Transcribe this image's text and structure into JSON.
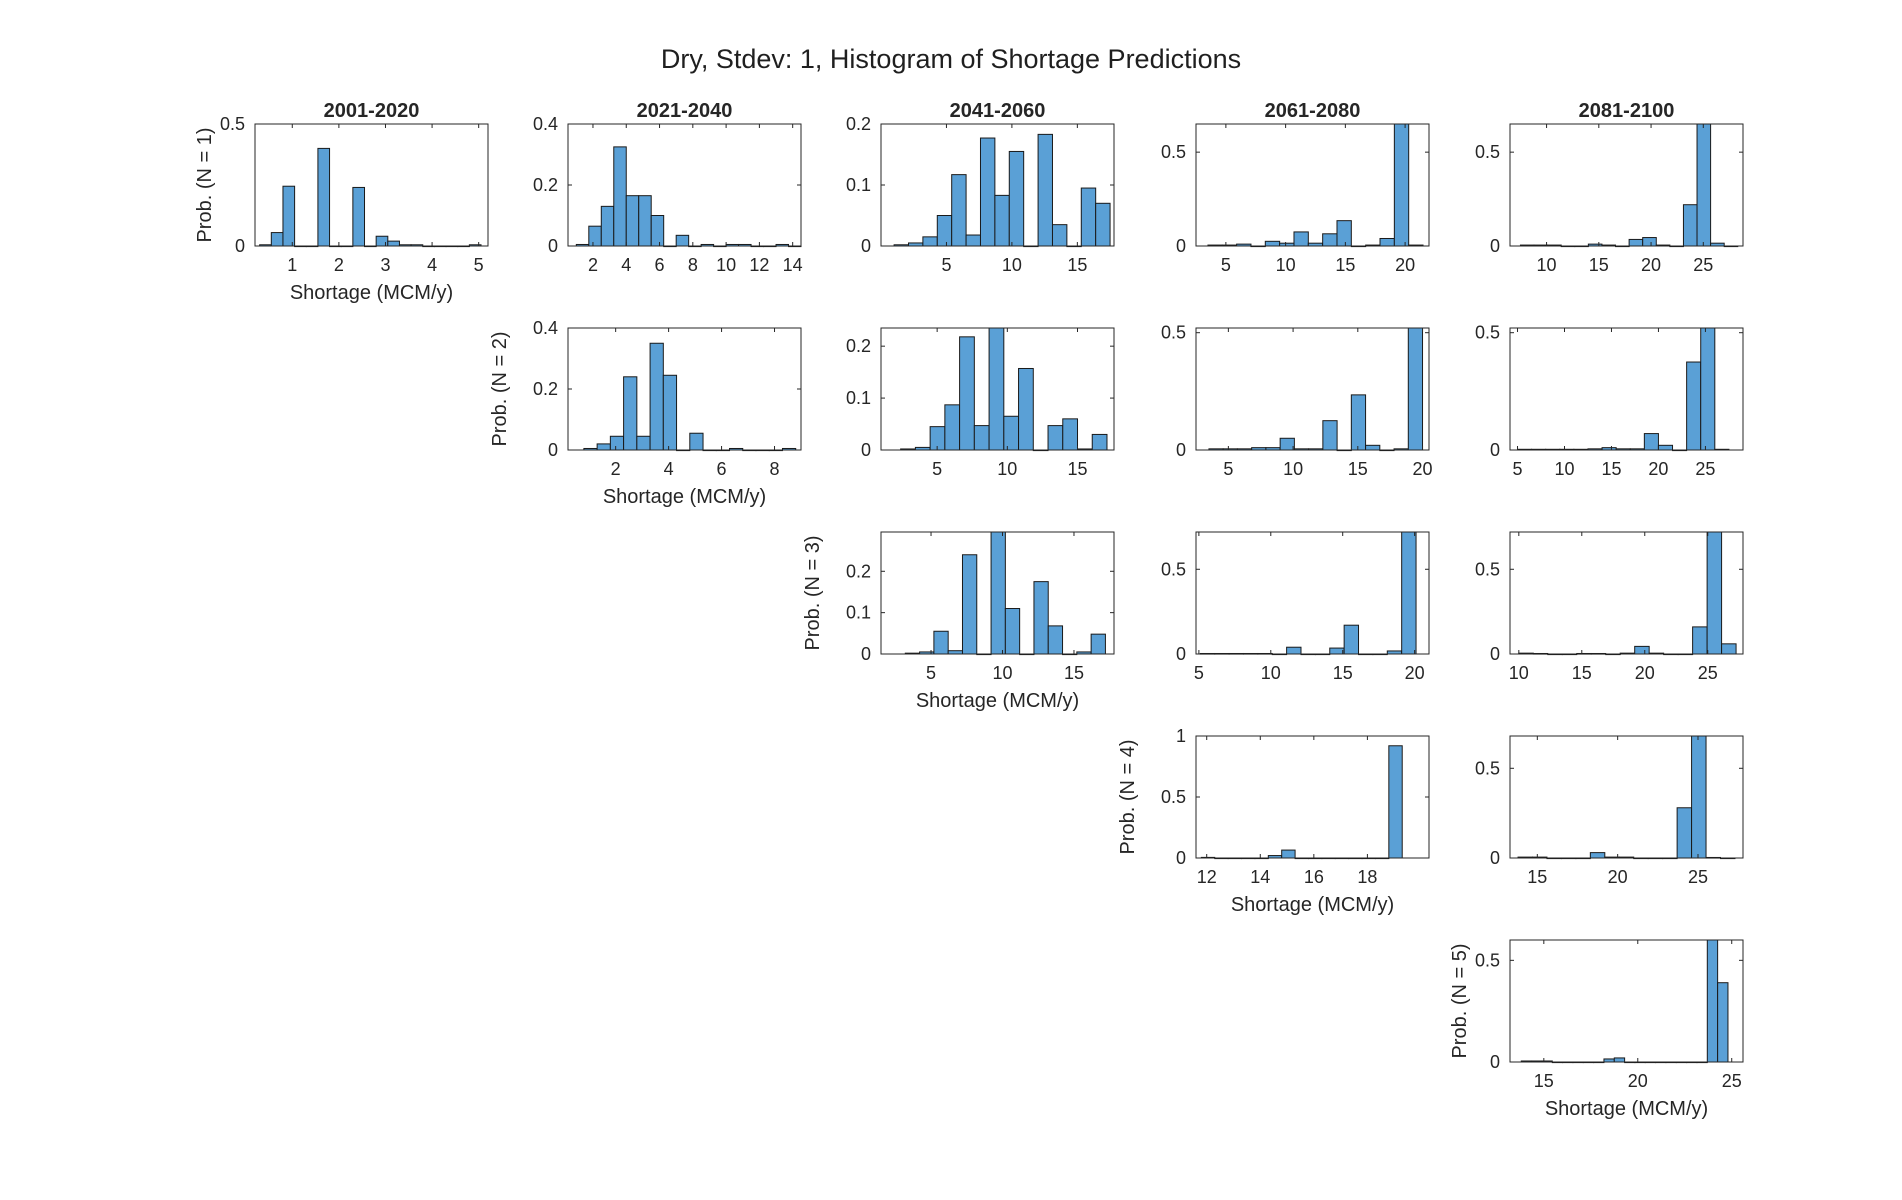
{
  "figure": {
    "title": "Dry, Stdev: 1, Histogram of Shortage Predictions",
    "bar_color": "#5aa0d6",
    "edge_color": "#1a1a1a",
    "axis_color": "#262626"
  },
  "chart_data": [
    {
      "type": "bar",
      "period": "2001-2020",
      "N": 1,
      "title": "2001-2020",
      "ylabel": "Prob. (N = 1)",
      "xlabel": "Shortage (MCM/y)",
      "xlim": [
        0.2,
        5.2
      ],
      "ylim": [
        0,
        0.5
      ],
      "xticks": [
        1,
        2,
        3,
        4,
        5
      ],
      "yticks": [
        0,
        0.5
      ],
      "ytick_labels": [
        "0",
        "0.5"
      ],
      "bin_width": 0.25,
      "bin_starts": [
        0.3,
        0.55,
        0.8,
        1.05,
        1.3,
        1.55,
        1.8,
        2.05,
        2.3,
        2.55,
        2.8,
        3.05,
        3.3,
        3.55,
        3.8,
        4.05,
        4.3,
        4.55,
        4.8
      ],
      "values": [
        0.005,
        0.055,
        0.245,
        0,
        0,
        0.4,
        0,
        0,
        0.24,
        0,
        0.04,
        0.02,
        0.005,
        0.005,
        0,
        0,
        0,
        0,
        0.005
      ]
    },
    {
      "type": "bar",
      "period": "2021-2040",
      "N": 1,
      "title": "2021-2040",
      "ylabel": "",
      "xlabel": "",
      "xlim": [
        0.5,
        14.5
      ],
      "ylim": [
        0,
        0.4
      ],
      "xticks": [
        2,
        4,
        6,
        8,
        10,
        12,
        14
      ],
      "yticks": [
        0,
        0.2,
        0.4
      ],
      "ytick_labels": [
        "0",
        "0.2",
        "0.4"
      ],
      "bin_width": 0.75,
      "bin_starts": [
        1.0,
        1.75,
        2.5,
        3.25,
        4.0,
        4.75,
        5.5,
        6.25,
        7.0,
        7.75,
        8.5,
        9.25,
        10.0,
        10.75,
        11.5,
        12.25,
        13.0,
        13.75
      ],
      "values": [
        0.005,
        0.065,
        0.13,
        0.325,
        0.165,
        0.165,
        0.1,
        0,
        0.035,
        0,
        0.005,
        0,
        0.005,
        0.005,
        0,
        0,
        0.005,
        0
      ]
    },
    {
      "type": "bar",
      "period": "2041-2060",
      "N": 1,
      "title": "2041-2060",
      "ylabel": "",
      "xlabel": "",
      "xlim": [
        0,
        17.8
      ],
      "ylim": [
        0,
        0.2
      ],
      "xticks": [
        5,
        10,
        15
      ],
      "yticks": [
        0,
        0.1,
        0.2
      ],
      "ytick_labels": [
        "0",
        "0.1",
        "0.2"
      ],
      "bin_width": 1.1,
      "bin_starts": [
        1.0,
        2.1,
        3.2,
        4.3,
        5.4,
        6.5,
        7.6,
        8.7,
        9.8,
        10.9,
        12.0,
        13.1,
        14.2,
        15.3,
        16.4
      ],
      "values": [
        0.002,
        0.005,
        0.015,
        0.05,
        0.117,
        0.018,
        0.177,
        0.083,
        0.155,
        0,
        0.183,
        0.035,
        0,
        0.095,
        0.07
      ]
    },
    {
      "type": "bar",
      "period": "2061-2080",
      "N": 1,
      "title": "2061-2080",
      "ylabel": "",
      "xlabel": "",
      "xlim": [
        2.5,
        22
      ],
      "ylim": [
        0,
        0.65
      ],
      "xticks": [
        5,
        10,
        15,
        20
      ],
      "yticks": [
        0,
        0.5
      ],
      "ytick_labels": [
        "0",
        "0.5"
      ],
      "bin_width": 1.2,
      "bin_starts": [
        3.5,
        4.7,
        5.9,
        7.1,
        8.3,
        9.5,
        10.7,
        11.9,
        13.1,
        14.3,
        15.5,
        16.7,
        17.9,
        19.1,
        20.3
      ],
      "values": [
        0.005,
        0.005,
        0.01,
        0,
        0.025,
        0.015,
        0.075,
        0.015,
        0.065,
        0.135,
        0,
        0.005,
        0.04,
        0.65,
        0.005
      ]
    },
    {
      "type": "bar",
      "period": "2081-2100",
      "N": 1,
      "title": "2081-2100",
      "ylabel": "",
      "xlabel": "",
      "xlim": [
        6.5,
        28.8
      ],
      "ylim": [
        0,
        0.65
      ],
      "xticks": [
        10,
        15,
        20,
        25
      ],
      "yticks": [
        0,
        0.5
      ],
      "ytick_labels": [
        "0",
        "0.5"
      ],
      "bin_width": 1.3,
      "bin_starts": [
        7.5,
        8.8,
        10.1,
        11.4,
        12.7,
        14.0,
        15.3,
        16.6,
        17.9,
        19.2,
        20.5,
        21.8,
        23.1,
        24.4,
        25.7,
        27.0
      ],
      "values": [
        0.005,
        0.005,
        0.005,
        0,
        0,
        0.01,
        0.005,
        0,
        0.035,
        0.045,
        0.005,
        0,
        0.22,
        0.65,
        0.015,
        0
      ]
    },
    {
      "type": "bar",
      "period": "2021-2040",
      "N": 2,
      "title": "",
      "ylabel": "Prob. (N = 2)",
      "xlabel": "Shortage (MCM/y)",
      "xlim": [
        0.2,
        9.0
      ],
      "ylim": [
        0,
        0.4
      ],
      "xticks": [
        2,
        4,
        6,
        8
      ],
      "yticks": [
        0,
        0.2,
        0.4
      ],
      "ytick_labels": [
        "0",
        "0.2",
        "0.4"
      ],
      "bin_width": 0.5,
      "bin_starts": [
        0.8,
        1.3,
        1.8,
        2.3,
        2.8,
        3.3,
        3.8,
        4.3,
        4.8,
        5.3,
        5.8,
        6.3,
        6.8,
        7.3,
        7.8,
        8.3
      ],
      "values": [
        0.005,
        0.02,
        0.045,
        0.24,
        0.045,
        0.35,
        0.245,
        0,
        0.055,
        0,
        0,
        0.005,
        0,
        0,
        0,
        0.005
      ]
    },
    {
      "type": "bar",
      "period": "2041-2060",
      "N": 2,
      "title": "",
      "ylabel": "",
      "xlabel": "",
      "xlim": [
        1.0,
        17.6
      ],
      "ylim": [
        0,
        0.235
      ],
      "xticks": [
        5,
        10,
        15
      ],
      "yticks": [
        0,
        0.1,
        0.2
      ],
      "ytick_labels": [
        "0",
        "0.1",
        "0.2"
      ],
      "bin_width": 1.05,
      "bin_starts": [
        2.4,
        3.45,
        4.5,
        5.55,
        6.6,
        7.65,
        8.7,
        9.75,
        10.8,
        11.85,
        12.9,
        13.95,
        15.0,
        16.05
      ],
      "values": [
        0.002,
        0.005,
        0.045,
        0.087,
        0.218,
        0.047,
        0.235,
        0.065,
        0.157,
        0,
        0.047,
        0.06,
        0.002,
        0.03
      ]
    },
    {
      "type": "bar",
      "period": "2061-2080",
      "N": 2,
      "title": "",
      "ylabel": "",
      "xlabel": "",
      "xlim": [
        2.5,
        20.5
      ],
      "ylim": [
        0,
        0.52
      ],
      "xticks": [
        5,
        10,
        15,
        20
      ],
      "yticks": [
        0,
        0.5
      ],
      "ytick_labels": [
        "0",
        "0.5"
      ],
      "bin_width": 1.1,
      "bin_starts": [
        3.5,
        4.6,
        5.7,
        6.8,
        7.9,
        9.0,
        10.1,
        11.2,
        12.3,
        13.4,
        14.5,
        15.6,
        16.7,
        17.8,
        18.9
      ],
      "values": [
        0.005,
        0.005,
        0.005,
        0.01,
        0.01,
        0.05,
        0.005,
        0.005,
        0.125,
        0,
        0.235,
        0.02,
        0,
        0.005,
        0.52
      ]
    },
    {
      "type": "bar",
      "period": "2081-2100",
      "N": 2,
      "title": "",
      "ylabel": "",
      "xlabel": "",
      "xlim": [
        4.2,
        29
      ],
      "ylim": [
        0,
        0.52
      ],
      "xticks": [
        5,
        10,
        15,
        20,
        25
      ],
      "yticks": [
        0,
        0.5
      ],
      "ytick_labels": [
        "0",
        "0.5"
      ],
      "bin_width": 1.5,
      "bin_starts": [
        5.0,
        6.5,
        8.0,
        9.5,
        11.0,
        12.5,
        14.0,
        15.5,
        17.0,
        18.5,
        20.0,
        21.5,
        23.0,
        24.5,
        26.0
      ],
      "values": [
        0.003,
        0.003,
        0.003,
        0.003,
        0.003,
        0.005,
        0.01,
        0.005,
        0.005,
        0.07,
        0.02,
        0,
        0.375,
        0.52,
        0.003
      ]
    },
    {
      "type": "bar",
      "period": "2041-2060",
      "N": 3,
      "title": "",
      "ylabel": "Prob. (N = 3)",
      "xlabel": "Shortage (MCM/y)",
      "xlim": [
        1.5,
        17.8
      ],
      "ylim": [
        0,
        0.295
      ],
      "xticks": [
        5,
        10,
        15
      ],
      "yticks": [
        0,
        0.1,
        0.2
      ],
      "ytick_labels": [
        "0",
        "0.1",
        "0.2"
      ],
      "bin_width": 1.0,
      "bin_starts": [
        3.2,
        4.2,
        5.2,
        6.2,
        7.2,
        8.2,
        9.2,
        10.2,
        11.2,
        12.2,
        13.2,
        14.2,
        15.2,
        16.2
      ],
      "values": [
        0.002,
        0.005,
        0.055,
        0.008,
        0.24,
        0,
        0.295,
        0.11,
        0,
        0.175,
        0.068,
        0,
        0.005,
        0.048
      ]
    },
    {
      "type": "bar",
      "period": "2061-2080",
      "N": 3,
      "title": "",
      "ylabel": "",
      "xlabel": "",
      "xlim": [
        4.8,
        21
      ],
      "ylim": [
        0,
        0.72
      ],
      "xticks": [
        5,
        10,
        15,
        20
      ],
      "yticks": [
        0,
        0.5
      ],
      "ytick_labels": [
        "0",
        "0.5"
      ],
      "bin_width": 1.0,
      "bin_starts": [
        5.1,
        6.1,
        7.1,
        8.1,
        9.1,
        10.1,
        11.1,
        12.1,
        13.1,
        14.1,
        15.1,
        16.1,
        17.1,
        18.1,
        19.1
      ],
      "values": [
        0.003,
        0.003,
        0.003,
        0.003,
        0.003,
        0,
        0.04,
        0,
        0,
        0.035,
        0.17,
        0,
        0,
        0.018,
        0.72
      ]
    },
    {
      "type": "bar",
      "period": "2081-2100",
      "N": 3,
      "title": "",
      "ylabel": "",
      "xlabel": "",
      "xlim": [
        9.3,
        27.8
      ],
      "ylim": [
        0,
        0.72
      ],
      "xticks": [
        10,
        15,
        20,
        25
      ],
      "yticks": [
        0,
        0.5
      ],
      "ytick_labels": [
        "0",
        "0.5"
      ],
      "bin_width": 1.15,
      "bin_starts": [
        10.0,
        11.15,
        12.3,
        13.45,
        14.6,
        15.75,
        16.9,
        18.05,
        19.2,
        20.35,
        21.5,
        22.65,
        23.8,
        24.95,
        26.1
      ],
      "values": [
        0.005,
        0.003,
        0,
        0,
        0.003,
        0.003,
        0,
        0.005,
        0.045,
        0.005,
        0,
        0,
        0.16,
        0.72,
        0.06
      ]
    },
    {
      "type": "bar",
      "period": "2061-2080",
      "N": 4,
      "title": "",
      "ylabel": "Prob. (N = 4)",
      "xlabel": "Shortage (MCM/y)",
      "xlim": [
        11.6,
        20.3
      ],
      "ylim": [
        0,
        1
      ],
      "xticks": [
        12,
        14,
        16,
        18
      ],
      "yticks": [
        0,
        0.5,
        1
      ],
      "ytick_labels": [
        "0",
        "0.5",
        "1"
      ],
      "bin_width": 0.5,
      "bin_starts": [
        11.8,
        12.3,
        12.8,
        13.3,
        13.8,
        14.3,
        14.8,
        15.3,
        15.8,
        16.3,
        16.8,
        17.3,
        17.8,
        18.3,
        18.8
      ],
      "values": [
        0.005,
        0,
        0,
        0,
        0,
        0.02,
        0.065,
        0,
        0,
        0,
        0,
        0,
        0,
        0,
        0.92
      ]
    },
    {
      "type": "bar",
      "period": "2081-2100",
      "N": 4,
      "title": "",
      "ylabel": "",
      "xlabel": "",
      "xlim": [
        13.3,
        27.8
      ],
      "ylim": [
        0,
        0.68
      ],
      "xticks": [
        15,
        20,
        25
      ],
      "yticks": [
        0,
        0.5
      ],
      "ytick_labels": [
        "0",
        "0.5"
      ],
      "bin_width": 0.9,
      "bin_starts": [
        13.8,
        14.7,
        15.6,
        16.5,
        17.4,
        18.3,
        19.2,
        20.1,
        21.0,
        21.9,
        22.8,
        23.7,
        24.6,
        25.5,
        26.4
      ],
      "values": [
        0.005,
        0.005,
        0,
        0,
        0,
        0.03,
        0.005,
        0.005,
        0,
        0,
        0,
        0.28,
        0.68,
        0.003,
        0
      ]
    },
    {
      "type": "bar",
      "period": "2081-2100",
      "N": 5,
      "title": "",
      "ylabel": "Prob. (N = 5)",
      "xlabel": "Shortage (MCM/y)",
      "xlim": [
        13.2,
        25.6
      ],
      "ylim": [
        0,
        0.6
      ],
      "xticks": [
        15,
        20,
        25
      ],
      "yticks": [
        0,
        0.5
      ],
      "ytick_labels": [
        "0",
        "0.5"
      ],
      "bin_width": 0.55,
      "bin_starts": [
        13.8,
        14.35,
        14.9,
        15.45,
        16.0,
        16.55,
        17.1,
        17.65,
        18.2,
        18.75,
        19.3,
        19.85,
        20.4,
        20.95,
        21.5,
        22.05,
        22.6,
        23.15,
        23.7,
        24.25
      ],
      "values": [
        0.005,
        0.005,
        0.005,
        0,
        0,
        0,
        0,
        0,
        0.015,
        0.02,
        0,
        0,
        0,
        0,
        0,
        0,
        0,
        0,
        0.6,
        0.39
      ]
    }
  ]
}
